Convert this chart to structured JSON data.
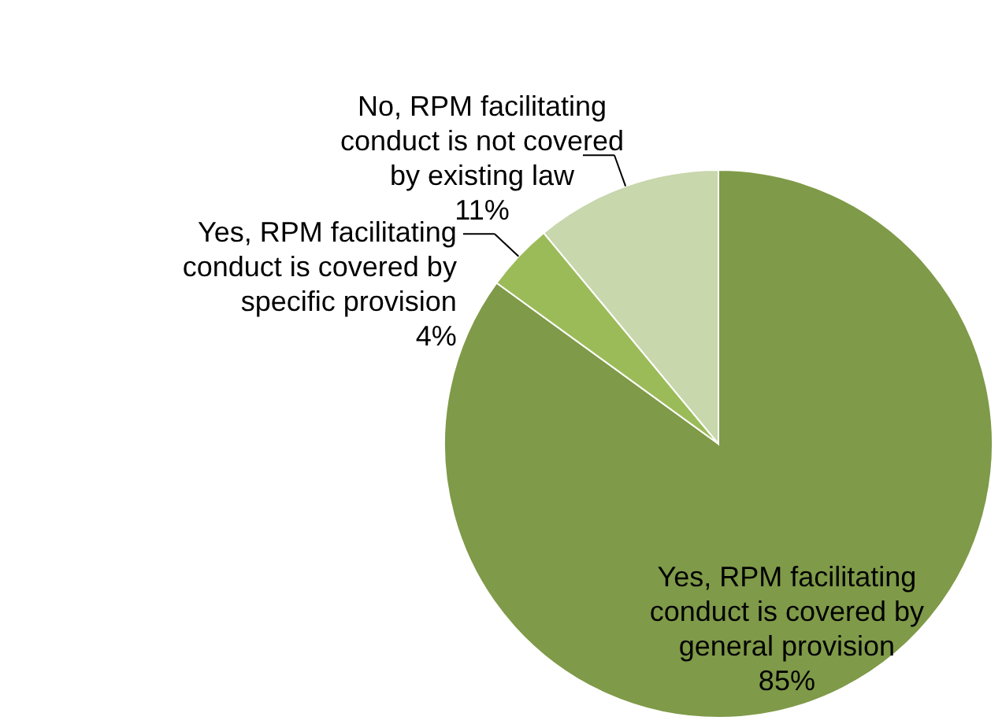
{
  "chart_data": {
    "type": "pie",
    "categories": [
      "Yes, RPM facilitating conduct is covered by general provision",
      "Yes, RPM facilitating conduct is covered by specific provision",
      "No, RPM facilitating conduct is not covered by existing law"
    ],
    "values": [
      85,
      4,
      11
    ],
    "value_labels": [
      "85%",
      "4%",
      "11%"
    ],
    "colors": [
      "#7f9a48",
      "#9bbb59",
      "#c8d7ac"
    ],
    "legend": false
  }
}
